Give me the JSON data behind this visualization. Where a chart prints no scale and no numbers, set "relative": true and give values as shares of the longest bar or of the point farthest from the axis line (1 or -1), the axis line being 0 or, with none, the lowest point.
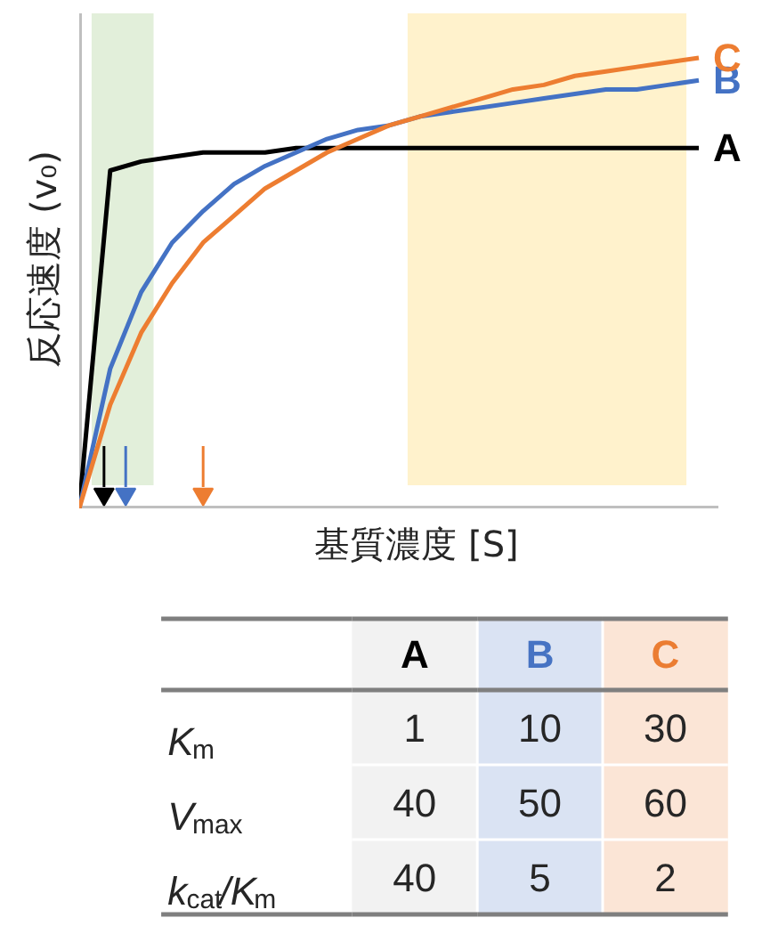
{
  "chart_data": [
    {
      "type": "line",
      "relative": true,
      "xlabel": "基質濃度 [S]",
      "ylabel": "反応速度 (v₀)",
      "categories": [
        null,
        null,
        null,
        null,
        null,
        null,
        null,
        null,
        null,
        null,
        null,
        null,
        null,
        null,
        null,
        null,
        null,
        null,
        null,
        null,
        null
      ],
      "series": [
        {
          "name": "A",
          "color": "#000000",
          "values": [
            0,
            0.75,
            0.77,
            0.78,
            0.79,
            0.79,
            0.79,
            0.8,
            0.8,
            0.8,
            0.8,
            0.8,
            0.8,
            0.8,
            0.8,
            0.8,
            0.8,
            0.8,
            0.8,
            0.8,
            0.8
          ]
        },
        {
          "name": "B",
          "color": "#4472c4",
          "values": [
            0,
            0.31,
            0.48,
            0.59,
            0.66,
            0.72,
            0.76,
            0.79,
            0.82,
            0.84,
            0.85,
            0.87,
            0.88,
            0.89,
            0.9,
            0.91,
            0.92,
            0.93,
            0.93,
            0.94,
            0.95
          ]
        },
        {
          "name": "C",
          "color": "#ed7d31",
          "values": [
            0,
            0.23,
            0.39,
            0.5,
            0.59,
            0.65,
            0.71,
            0.75,
            0.79,
            0.82,
            0.85,
            0.87,
            0.89,
            0.91,
            0.93,
            0.94,
            0.96,
            0.97,
            0.98,
            0.99,
            1.0
          ]
        }
      ]
    },
    {
      "type": "heatmap",
      "data_labels": true,
      "categories": [
        "A",
        "B",
        "C"
      ],
      "colors": [
        "#f2f2f2",
        "#dae3f3",
        "#fbe5d6"
      ],
      "y_categories": [
        "K$_{m}$",
        "V$_{max}$",
        "k$_{cat}$/K$_{m}$"
      ],
      "cells": [
        [
          1,
          10,
          30
        ],
        [
          40,
          50,
          60
        ],
        [
          40,
          5,
          2
        ]
      ]
    }
  ]
}
